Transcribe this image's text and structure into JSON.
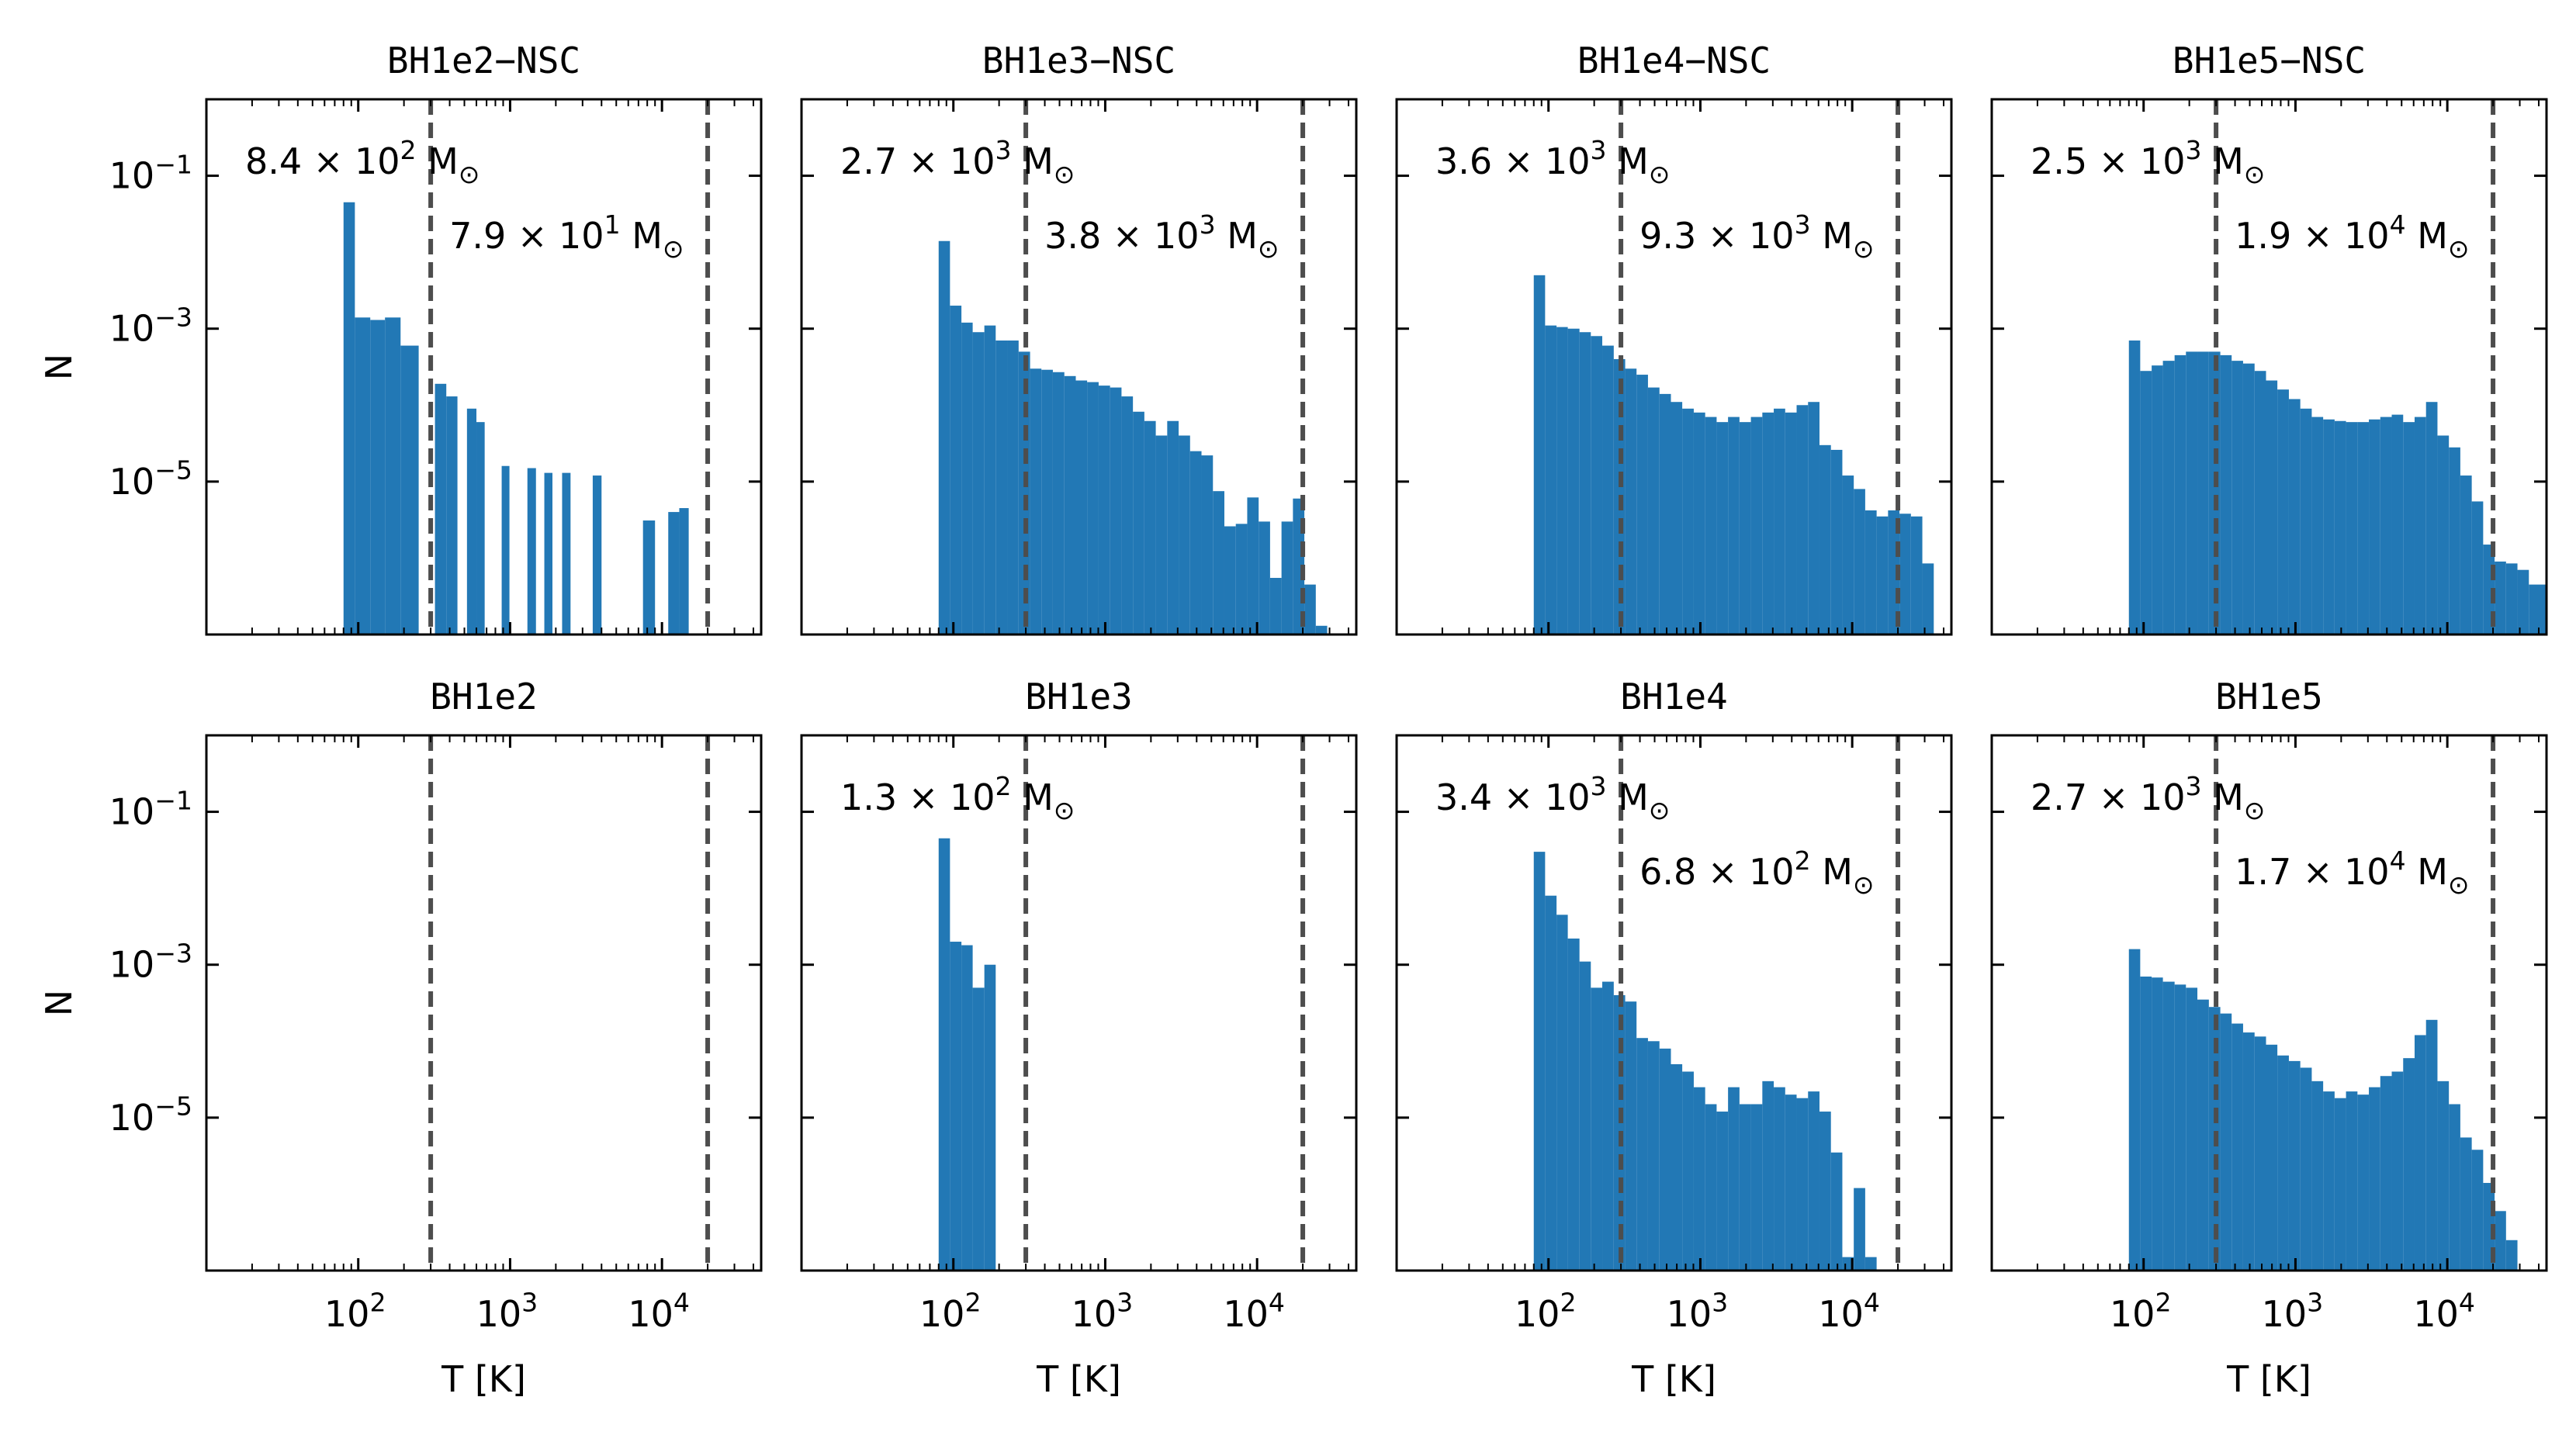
{
  "figure": {
    "bar_color": "#2278b5",
    "vline_color": "#4d4d4d",
    "xlabel": "T [K]",
    "ylabel": "N",
    "x_ticks": [
      {
        "mant": "10",
        "exp": "2"
      },
      {
        "mant": "10",
        "exp": "3"
      },
      {
        "mant": "10",
        "exp": "4"
      }
    ],
    "y_ticks": [
      {
        "mant": "10",
        "exp": "−1"
      },
      {
        "mant": "10",
        "exp": "−3"
      },
      {
        "mant": "10",
        "exp": "−5"
      }
    ]
  },
  "chart_data": [
    {
      "type": "bar",
      "title": "BH1e2−NSC",
      "xscale": "log",
      "yscale": "log",
      "xlim": [
        10,
        45000
      ],
      "ylim": [
        1e-07,
        1
      ],
      "vlines": [
        300,
        20000
      ],
      "mass_left": {
        "mant": "8.4",
        "exp": "2"
      },
      "mass_right": {
        "mant": "7.9",
        "exp": "1"
      },
      "bins": [
        [
          80,
          95,
          0.045
        ],
        [
          95,
          120,
          0.0014
        ],
        [
          120,
          150,
          0.0013
        ],
        [
          150,
          190,
          0.0014
        ],
        [
          190,
          250,
          0.0006
        ],
        [
          320,
          380,
          0.00019
        ],
        [
          380,
          450,
          0.00013
        ],
        [
          520,
          600,
          9e-05
        ],
        [
          600,
          680,
          6e-05
        ],
        [
          880,
          990,
          1.6e-05
        ],
        [
          1300,
          1480,
          1.5e-05
        ],
        [
          1680,
          1900,
          1.3e-05
        ],
        [
          2200,
          2500,
          1.3e-05
        ],
        [
          3500,
          4000,
          1.2e-05
        ],
        [
          7500,
          9000,
          3.1e-06
        ],
        [
          11000,
          13000,
          4e-06
        ],
        [
          13000,
          15000,
          4.5e-06
        ]
      ]
    },
    {
      "type": "bar",
      "title": "BH1e3−NSC",
      "xscale": "log",
      "yscale": "log",
      "xlim": [
        10,
        45000
      ],
      "ylim": [
        1e-07,
        1
      ],
      "vlines": [
        300,
        20000
      ],
      "mass_left": {
        "mant": "2.7",
        "exp": "3"
      },
      "mass_right": {
        "mant": "3.8",
        "exp": "3"
      },
      "bins": [
        [
          80,
          95,
          0.014
        ],
        [
          95,
          113,
          0.002
        ],
        [
          113,
          134,
          0.0012
        ],
        [
          134,
          160,
          0.0009
        ],
        [
          160,
          190,
          0.0011
        ],
        [
          190,
          226,
          0.0007
        ],
        [
          226,
          269,
          0.0007
        ],
        [
          269,
          320,
          0.0005
        ],
        [
          320,
          380,
          0.0003
        ],
        [
          380,
          452,
          0.00029
        ],
        [
          452,
          538,
          0.00027
        ],
        [
          538,
          640,
          0.00024
        ],
        [
          640,
          760,
          0.00021
        ],
        [
          760,
          905,
          0.0002
        ],
        [
          905,
          1076,
          0.00018
        ],
        [
          1076,
          1280,
          0.00017
        ],
        [
          1280,
          1522,
          0.00013
        ],
        [
          1522,
          1810,
          8.2e-05
        ],
        [
          1810,
          2152,
          6.2e-05
        ],
        [
          2152,
          2560,
          4e-05
        ],
        [
          2560,
          3044,
          6.2e-05
        ],
        [
          3044,
          3620,
          4e-05
        ],
        [
          3620,
          4305,
          2.5e-05
        ],
        [
          4305,
          5120,
          2.2e-05
        ],
        [
          5120,
          6089,
          7.5e-06
        ],
        [
          6089,
          7241,
          2.6e-06
        ],
        [
          7241,
          8611,
          2.8e-06
        ],
        [
          8611,
          10240,
          6.2e-06
        ],
        [
          10240,
          12178,
          3e-06
        ],
        [
          12178,
          14482,
          5.5e-07
        ],
        [
          14482,
          17222,
          3e-06
        ],
        [
          17222,
          20480,
          6e-06
        ],
        [
          20480,
          24355,
          4.5e-07
        ],
        [
          24355,
          28963,
          1.3e-07
        ]
      ]
    },
    {
      "type": "bar",
      "title": "BH1e4−NSC",
      "xscale": "log",
      "yscale": "log",
      "xlim": [
        10,
        45000
      ],
      "ylim": [
        1e-07,
        1
      ],
      "vlines": [
        300,
        20000
      ],
      "mass_left": {
        "mant": "3.6",
        "exp": "3"
      },
      "mass_right": {
        "mant": "9.3",
        "exp": "3"
      },
      "bins": [
        [
          80,
          95,
          0.005
        ],
        [
          95,
          113,
          0.0011
        ],
        [
          113,
          134,
          0.00105
        ],
        [
          134,
          160,
          0.001
        ],
        [
          160,
          190,
          0.0009
        ],
        [
          190,
          226,
          0.0008
        ],
        [
          226,
          269,
          0.0006
        ],
        [
          269,
          320,
          0.0004
        ],
        [
          320,
          380,
          0.0003
        ],
        [
          380,
          452,
          0.00025
        ],
        [
          452,
          538,
          0.00017
        ],
        [
          538,
          640,
          0.00014
        ],
        [
          640,
          760,
          0.00011
        ],
        [
          760,
          905,
          9e-05
        ],
        [
          905,
          1076,
          8e-05
        ],
        [
          1076,
          1280,
          7e-05
        ],
        [
          1280,
          1522,
          6e-05
        ],
        [
          1522,
          1810,
          7e-05
        ],
        [
          1810,
          2152,
          6e-05
        ],
        [
          2152,
          2560,
          7e-05
        ],
        [
          2560,
          3044,
          8e-05
        ],
        [
          3044,
          3620,
          9e-05
        ],
        [
          3620,
          4305,
          8e-05
        ],
        [
          4305,
          5120,
          0.0001
        ],
        [
          5120,
          6089,
          0.00011
        ],
        [
          6089,
          7241,
          3e-05
        ],
        [
          7241,
          8611,
          2.6e-05
        ],
        [
          8611,
          10240,
          1.2e-05
        ],
        [
          10240,
          12178,
          8e-06
        ],
        [
          12178,
          14482,
          4.2e-06
        ],
        [
          14482,
          17222,
          3.5e-06
        ],
        [
          17222,
          20480,
          4.2e-06
        ],
        [
          20480,
          24355,
          3.8e-06
        ],
        [
          24355,
          28963,
          3.5e-06
        ],
        [
          28963,
          34443,
          8.5e-07
        ]
      ]
    },
    {
      "type": "bar",
      "title": "BH1e5−NSC",
      "xscale": "log",
      "yscale": "log",
      "xlim": [
        10,
        45000
      ],
      "ylim": [
        1e-07,
        1
      ],
      "vlines": [
        300,
        20000
      ],
      "mass_left": {
        "mant": "2.5",
        "exp": "3"
      },
      "mass_right": {
        "mant": "1.9",
        "exp": "4"
      },
      "bins": [
        [
          80,
          95,
          0.0007
        ],
        [
          95,
          113,
          0.00028
        ],
        [
          113,
          134,
          0.00033
        ],
        [
          134,
          160,
          0.00038
        ],
        [
          160,
          190,
          0.00045
        ],
        [
          190,
          226,
          0.0005
        ],
        [
          226,
          269,
          0.0005
        ],
        [
          269,
          320,
          0.0005
        ],
        [
          320,
          380,
          0.00045
        ],
        [
          380,
          452,
          0.00038
        ],
        [
          452,
          538,
          0.00035
        ],
        [
          538,
          640,
          0.00028
        ],
        [
          640,
          760,
          0.00021
        ],
        [
          760,
          905,
          0.00016
        ],
        [
          905,
          1076,
          0.00012
        ],
        [
          1076,
          1280,
          9e-05
        ],
        [
          1280,
          1522,
          7e-05
        ],
        [
          1522,
          1810,
          6.5e-05
        ],
        [
          1810,
          2152,
          6.2e-05
        ],
        [
          2152,
          2560,
          6e-05
        ],
        [
          2560,
          3044,
          6e-05
        ],
        [
          3044,
          3620,
          6.5e-05
        ],
        [
          3620,
          4305,
          7e-05
        ],
        [
          4305,
          5120,
          7.5e-05
        ],
        [
          5120,
          6089,
          6e-05
        ],
        [
          6089,
          7241,
          7e-05
        ],
        [
          7241,
          8611,
          0.00011
        ],
        [
          8611,
          10240,
          4e-05
        ],
        [
          10240,
          12178,
          2.8e-05
        ],
        [
          12178,
          14482,
          1.2e-05
        ],
        [
          14482,
          17222,
          5.5e-06
        ],
        [
          17222,
          20480,
          1.5e-06
        ],
        [
          20480,
          24355,
          9e-07
        ],
        [
          24355,
          28963,
          8.5e-07
        ],
        [
          28963,
          34443,
          7e-07
        ],
        [
          34443,
          45000,
          4.5e-07
        ]
      ]
    },
    {
      "type": "bar",
      "title": "BH1e2",
      "xscale": "log",
      "yscale": "log",
      "xlim": [
        10,
        45000
      ],
      "ylim": [
        1e-07,
        1
      ],
      "vlines": [
        300,
        20000
      ],
      "mass_left": null,
      "mass_right": null,
      "bins": []
    },
    {
      "type": "bar",
      "title": "BH1e3",
      "xscale": "log",
      "yscale": "log",
      "xlim": [
        10,
        45000
      ],
      "ylim": [
        1e-07,
        1
      ],
      "vlines": [
        300,
        20000
      ],
      "mass_left": {
        "mant": "1.3",
        "exp": "2"
      },
      "mass_right": null,
      "bins": [
        [
          80,
          95,
          0.045
        ],
        [
          95,
          113,
          0.002
        ],
        [
          113,
          134,
          0.0018
        ],
        [
          134,
          160,
          0.0005
        ],
        [
          160,
          190,
          0.001
        ]
      ]
    },
    {
      "type": "bar",
      "title": "BH1e4",
      "xscale": "log",
      "yscale": "log",
      "xlim": [
        10,
        45000
      ],
      "ylim": [
        1e-07,
        1
      ],
      "vlines": [
        300,
        20000
      ],
      "mass_left": {
        "mant": "3.4",
        "exp": "3"
      },
      "mass_right": {
        "mant": "6.8",
        "exp": "2"
      },
      "bins": [
        [
          80,
          95,
          0.03
        ],
        [
          95,
          113,
          0.008
        ],
        [
          113,
          134,
          0.0045
        ],
        [
          134,
          160,
          0.0022
        ],
        [
          160,
          190,
          0.0011
        ],
        [
          190,
          226,
          0.0005
        ],
        [
          226,
          269,
          0.0006
        ],
        [
          269,
          320,
          0.0004
        ],
        [
          320,
          380,
          0.00033
        ],
        [
          380,
          452,
          0.00011
        ],
        [
          452,
          538,
          0.0001
        ],
        [
          538,
          640,
          8e-05
        ],
        [
          640,
          760,
          5e-05
        ],
        [
          760,
          905,
          4e-05
        ],
        [
          905,
          1076,
          2.5e-05
        ],
        [
          1076,
          1280,
          1.5e-05
        ],
        [
          1280,
          1522,
          1.2e-05
        ],
        [
          1522,
          1810,
          2.5e-05
        ],
        [
          1810,
          2152,
          1.5e-05
        ],
        [
          2152,
          2560,
          1.5e-05
        ],
        [
          2560,
          3044,
          3e-05
        ],
        [
          3044,
          3620,
          2.5e-05
        ],
        [
          3620,
          4305,
          2e-05
        ],
        [
          4305,
          5120,
          1.8e-05
        ],
        [
          5120,
          6089,
          2.2e-05
        ],
        [
          6089,
          7241,
          1.2e-05
        ],
        [
          7241,
          8611,
          3.5e-06
        ],
        [
          8611,
          10240,
          1.5e-07
        ],
        [
          10240,
          12178,
          1.2e-06
        ],
        [
          12178,
          14482,
          1.5e-07
        ]
      ]
    },
    {
      "type": "bar",
      "title": "BH1e5",
      "xscale": "log",
      "yscale": "log",
      "xlim": [
        10,
        45000
      ],
      "ylim": [
        1e-07,
        1
      ],
      "vlines": [
        300,
        20000
      ],
      "mass_left": {
        "mant": "2.7",
        "exp": "3"
      },
      "mass_right": {
        "mant": "1.7",
        "exp": "4"
      },
      "bins": [
        [
          80,
          95,
          0.0016
        ],
        [
          95,
          113,
          0.0007
        ],
        [
          113,
          134,
          0.00068
        ],
        [
          134,
          160,
          0.0006
        ],
        [
          160,
          190,
          0.00055
        ],
        [
          190,
          226,
          0.0005
        ],
        [
          226,
          269,
          0.00035
        ],
        [
          269,
          320,
          0.00028
        ],
        [
          320,
          380,
          0.00023
        ],
        [
          380,
          452,
          0.00017
        ],
        [
          452,
          538,
          0.00013
        ],
        [
          538,
          640,
          0.000115
        ],
        [
          640,
          760,
          9e-05
        ],
        [
          760,
          905,
          6.5e-05
        ],
        [
          905,
          1076,
          5.5e-05
        ],
        [
          1076,
          1280,
          4.5e-05
        ],
        [
          1280,
          1522,
          3e-05
        ],
        [
          1522,
          1810,
          2.2e-05
        ],
        [
          1810,
          2152,
          1.8e-05
        ],
        [
          2152,
          2560,
          2.2e-05
        ],
        [
          2560,
          3044,
          2e-05
        ],
        [
          3044,
          3620,
          2.5e-05
        ],
        [
          3620,
          4305,
          3.5e-05
        ],
        [
          4305,
          5120,
          4e-05
        ],
        [
          5120,
          6089,
          6e-05
        ],
        [
          6089,
          7241,
          0.00012
        ],
        [
          7241,
          8611,
          0.00019
        ],
        [
          8611,
          10240,
          3e-05
        ],
        [
          10240,
          12178,
          1.5e-05
        ],
        [
          12178,
          14482,
          5.5e-06
        ],
        [
          14482,
          17222,
          3.8e-06
        ],
        [
          17222,
          20480,
          1.4e-06
        ],
        [
          20480,
          24355,
          6e-07
        ],
        [
          24355,
          28963,
          2.5e-07
        ]
      ]
    }
  ]
}
